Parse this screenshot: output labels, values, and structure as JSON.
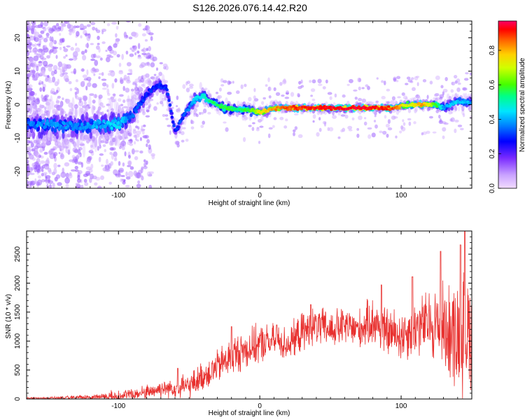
{
  "title": "S126.2026.076.14.42.R20",
  "chart_data": [
    {
      "type": "heatmap",
      "name": "spectrogram",
      "xlabel": "Height of straight line (km)",
      "ylabel": "Frequency (Hz)",
      "xlim": [
        -165,
        150
      ],
      "ylim": [
        -25,
        25
      ],
      "xticks": [
        -100,
        0,
        100
      ],
      "yticks": [
        -20,
        -10,
        0,
        10,
        20
      ],
      "colorbar": {
        "label": "Normalized spectral amplitude",
        "range": [
          0,
          0.97
        ],
        "ticks": [
          "0.0",
          "0.2",
          "0.4",
          "0.6",
          "0.8"
        ],
        "colors": [
          "#f2dcff",
          "#b06bff",
          "#5a00e6",
          "#0000ff",
          "#00bfff",
          "#00ff7f",
          "#7fff00",
          "#ffff00",
          "#ff8c00",
          "#ff0000",
          "#ff0066"
        ]
      },
      "ridge": {
        "x": [
          -165,
          -150,
          -130,
          -110,
          -100,
          -90,
          -80,
          -72,
          -66,
          -60,
          -52,
          -45,
          -40,
          -35,
          -25,
          -15,
          -8,
          0,
          10,
          20,
          40,
          60,
          80,
          95,
          105,
          115,
          125,
          130,
          140,
          150
        ],
        "freq": [
          -6,
          -6,
          -6.5,
          -6,
          -6,
          -3,
          3,
          6,
          5,
          -8,
          -2,
          2,
          2.5,
          1,
          -1,
          -1.5,
          -1.5,
          -2.5,
          -1,
          -1,
          -1,
          -1,
          -1,
          -1,
          0,
          0,
          0,
          -1,
          1,
          0.5
        ],
        "amp": [
          0.35,
          0.4,
          0.38,
          0.42,
          0.45,
          0.35,
          0.3,
          0.3,
          0.3,
          0.3,
          0.35,
          0.45,
          0.5,
          0.55,
          0.6,
          0.55,
          0.6,
          0.75,
          0.85,
          0.9,
          0.95,
          0.97,
          0.95,
          0.9,
          0.7,
          0.85,
          0.6,
          0.4,
          0.45,
          0.4
        ],
        "width": [
          3,
          3,
          3,
          3,
          3,
          2.5,
          2,
          1.5,
          1.5,
          1.5,
          1.5,
          1.5,
          1.2,
          1,
          1,
          1,
          1,
          0.9,
          0.7,
          0.6,
          0.6,
          0.6,
          0.6,
          0.6,
          0.7,
          0.7,
          0.8,
          1,
          1.2,
          1.2
        ]
      }
    },
    {
      "type": "line",
      "name": "snr",
      "xlabel": "Height of straight line (km)",
      "ylabel": "SNR (10 * v/v)",
      "xlim": [
        -165,
        150
      ],
      "ylim": [
        0,
        2900
      ],
      "xticks": [
        -100,
        0,
        100
      ],
      "yticks": [
        0,
        500,
        1000,
        1500,
        2000,
        2500
      ],
      "color": "#e8302e",
      "envelope": {
        "x": [
          -165,
          -140,
          -120,
          -110,
          -100,
          -90,
          -80,
          -70,
          -60,
          -50,
          -40,
          -30,
          -20,
          -10,
          0,
          10,
          20,
          30,
          40,
          50,
          60,
          70,
          80,
          90,
          100,
          110,
          120,
          130,
          140,
          150
        ],
        "base": [
          10,
          15,
          30,
          40,
          50,
          70,
          120,
          180,
          200,
          220,
          400,
          550,
          750,
          850,
          950,
          1000,
          950,
          1150,
          1250,
          1200,
          1250,
          1200,
          1350,
          1150,
          1100,
          1250,
          1300,
          1250,
          1100,
          1200
        ],
        "amp": [
          20,
          40,
          60,
          80,
          150,
          150,
          150,
          180,
          200,
          250,
          300,
          350,
          400,
          400,
          400,
          350,
          350,
          400,
          400,
          400,
          400,
          400,
          500,
          500,
          550,
          600,
          700,
          900,
          1200,
          1200
        ]
      },
      "peaks": [
        {
          "x": -58,
          "y": 530
        },
        {
          "x": -20,
          "y": 1250
        },
        {
          "x": 12,
          "y": 1280
        },
        {
          "x": 36,
          "y": 1630
        },
        {
          "x": 86,
          "y": 1970
        },
        {
          "x": 108,
          "y": 2110
        },
        {
          "x": 128,
          "y": 2550
        },
        {
          "x": 142,
          "y": 2660
        },
        {
          "x": 145,
          "y": 2900
        }
      ],
      "samples": 1400
    }
  ]
}
